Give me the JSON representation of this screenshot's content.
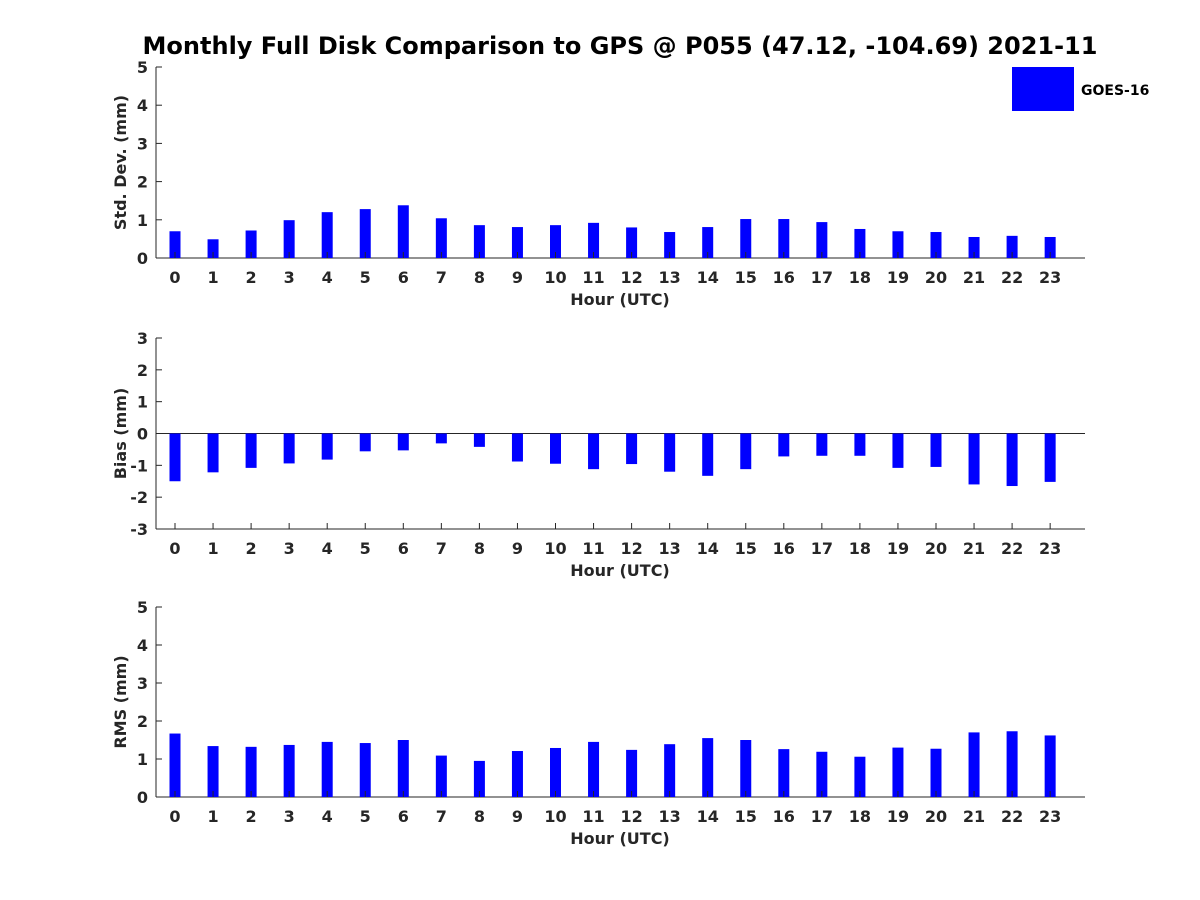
{
  "figure": {
    "title": "Monthly Full Disk Comparison to GPS @ P055 (47.12, -104.69) 2021-11",
    "legend_label": "GOES-16",
    "bar_color": "#0000ff",
    "axis_color": "#262626",
    "background": "#ffffff"
  },
  "chart_data": [
    {
      "type": "bar",
      "name": "std-dev",
      "ylabel": "Std. Dev. (mm)",
      "xlabel": "Hour (UTC)",
      "ylim": [
        0,
        5
      ],
      "yticks": [
        0,
        1,
        2,
        3,
        4,
        5
      ],
      "categories": [
        "0",
        "1",
        "2",
        "3",
        "4",
        "5",
        "6",
        "7",
        "8",
        "9",
        "10",
        "11",
        "12",
        "13",
        "14",
        "15",
        "16",
        "17",
        "18",
        "19",
        "20",
        "21",
        "22",
        "23"
      ],
      "series": [
        {
          "name": "GOES-16",
          "values": [
            0.7,
            0.49,
            0.72,
            0.99,
            1.2,
            1.28,
            1.38,
            1.04,
            0.86,
            0.81,
            0.86,
            0.92,
            0.8,
            0.68,
            0.81,
            1.02,
            1.02,
            0.94,
            0.76,
            0.7,
            0.68,
            0.55,
            0.58,
            0.55
          ]
        }
      ],
      "legend": "top-right"
    },
    {
      "type": "bar",
      "name": "bias",
      "ylabel": "Bias (mm)",
      "xlabel": "Hour (UTC)",
      "ylim": [
        -3,
        3
      ],
      "yticks": [
        -3,
        -2,
        -1,
        0,
        1,
        2,
        3
      ],
      "categories": [
        "0",
        "1",
        "2",
        "3",
        "4",
        "5",
        "6",
        "7",
        "8",
        "9",
        "10",
        "11",
        "12",
        "13",
        "14",
        "15",
        "16",
        "17",
        "18",
        "19",
        "20",
        "21",
        "22",
        "23"
      ],
      "series": [
        {
          "name": "GOES-16",
          "values": [
            -1.5,
            -1.22,
            -1.08,
            -0.94,
            -0.82,
            -0.56,
            -0.53,
            -0.31,
            -0.42,
            -0.88,
            -0.95,
            -1.12,
            -0.96,
            -1.2,
            -1.33,
            -1.12,
            -0.72,
            -0.7,
            -0.7,
            -1.08,
            -1.05,
            -1.6,
            -1.65,
            -1.52
          ]
        }
      ]
    },
    {
      "type": "bar",
      "name": "rms",
      "ylabel": "RMS (mm)",
      "xlabel": "Hour (UTC)",
      "ylim": [
        0,
        5
      ],
      "yticks": [
        0,
        1,
        2,
        3,
        4,
        5
      ],
      "categories": [
        "0",
        "1",
        "2",
        "3",
        "4",
        "5",
        "6",
        "7",
        "8",
        "9",
        "10",
        "11",
        "12",
        "13",
        "14",
        "15",
        "16",
        "17",
        "18",
        "19",
        "20",
        "21",
        "22",
        "23"
      ],
      "series": [
        {
          "name": "GOES-16",
          "values": [
            1.67,
            1.34,
            1.32,
            1.37,
            1.45,
            1.42,
            1.5,
            1.09,
            0.95,
            1.21,
            1.29,
            1.45,
            1.24,
            1.39,
            1.55,
            1.5,
            1.26,
            1.19,
            1.06,
            1.3,
            1.27,
            1.7,
            1.73,
            1.62
          ]
        }
      ]
    }
  ]
}
